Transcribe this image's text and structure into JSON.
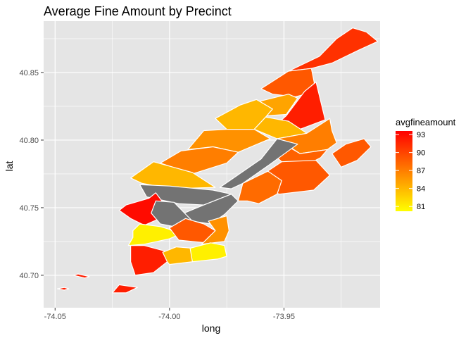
{
  "chart_data": {
    "type": "choropleth map",
    "title": "Average Fine Amount by Precinct",
    "xlabel": "long",
    "ylabel": "lat",
    "xlim": [
      -74.055,
      -73.908
    ],
    "ylim": [
      40.676,
      40.888
    ],
    "x_ticks": [
      -74.05,
      -74.0,
      -73.95
    ],
    "x_tick_labels": [
      "-74.05",
      "-74.00",
      "-73.95"
    ],
    "y_ticks": [
      40.7,
      40.75,
      40.8,
      40.85
    ],
    "y_tick_labels": [
      "40.70",
      "40.75",
      "40.80",
      "40.85"
    ],
    "grid": true,
    "legend": {
      "title": "avgfineamount",
      "placement": "right",
      "range": [
        80.2,
        93.6
      ],
      "breaks": [
        93,
        90,
        87,
        84,
        81
      ],
      "break_labels": [
        "93",
        "90",
        "87",
        "84",
        "81"
      ],
      "low_color": "#ffff00",
      "high_color": "#ff0000",
      "na_color": "#737373"
    },
    "colors": {
      "panel_background": "#e5e5e5",
      "gridline": "#ffffff",
      "precinct_border": "#ffffff"
    },
    "precincts": [
      {
        "value": 91,
        "polygon": [
          [
            -73.9345,
            40.862
          ],
          [
            -73.927,
            40.875
          ],
          [
            -73.92,
            40.883
          ],
          [
            -73.914,
            40.88
          ],
          [
            -73.909,
            40.873
          ],
          [
            -73.918,
            40.866
          ],
          [
            -73.929,
            40.857
          ],
          [
            -73.938,
            40.853
          ],
          [
            -73.948,
            40.851
          ]
        ]
      },
      {
        "value": 89,
        "polygon": [
          [
            -73.948,
            40.851
          ],
          [
            -73.938,
            40.853
          ],
          [
            -73.936,
            40.836
          ],
          [
            -73.945,
            40.832
          ],
          [
            -73.955,
            40.834
          ],
          [
            -73.96,
            40.838
          ]
        ]
      },
      {
        "value": 92,
        "polygon": [
          [
            -73.941,
            40.836
          ],
          [
            -73.936,
            40.843
          ],
          [
            -73.932,
            40.815
          ],
          [
            -73.943,
            40.808
          ],
          [
            -73.953,
            40.812
          ],
          [
            -73.949,
            40.818
          ]
        ]
      },
      {
        "value": 85,
        "polygon": [
          [
            -73.944,
            40.831
          ],
          [
            -73.948,
            40.834
          ],
          [
            -73.96,
            40.829
          ],
          [
            -73.965,
            40.823
          ],
          [
            -73.958,
            40.818
          ],
          [
            -73.949,
            40.819
          ]
        ]
      },
      {
        "value": 84,
        "polygon": [
          [
            -73.969,
            40.826
          ],
          [
            -73.962,
            40.83
          ],
          [
            -73.955,
            40.823
          ],
          [
            -73.958,
            40.817
          ],
          [
            -73.963,
            40.808
          ],
          [
            -73.975,
            40.808
          ],
          [
            -73.98,
            40.816
          ]
        ]
      },
      {
        "value": 84,
        "polygon": [
          [
            -73.958,
            40.817
          ],
          [
            -73.948,
            40.814
          ],
          [
            -73.94,
            40.805
          ],
          [
            -73.953,
            40.801
          ],
          [
            -73.963,
            40.808
          ]
        ]
      },
      {
        "value": 87,
        "polygon": [
          [
            -73.94,
            40.805
          ],
          [
            -73.93,
            40.816
          ],
          [
            -73.929,
            40.807
          ],
          [
            -73.927,
            40.798
          ],
          [
            -73.931,
            40.793
          ],
          [
            -73.943,
            40.79
          ],
          [
            -73.953,
            40.801
          ]
        ]
      },
      {
        "value": 88.5,
        "polygon": [
          [
            -73.953,
            40.8
          ],
          [
            -73.943,
            40.79
          ],
          [
            -73.931,
            40.793
          ],
          [
            -73.934,
            40.787
          ],
          [
            -73.942,
            40.78
          ],
          [
            -73.951,
            40.784
          ],
          [
            -73.955,
            40.79
          ]
        ]
      },
      {
        "value": 89,
        "polygon": [
          [
            -73.923,
            40.797
          ],
          [
            -73.915,
            40.801
          ],
          [
            -73.912,
            40.795
          ],
          [
            -73.918,
            40.785
          ],
          [
            -73.925,
            40.78
          ],
          [
            -73.929,
            40.79
          ]
        ]
      },
      {
        "value": 86,
        "polygon": [
          [
            -73.985,
            40.807
          ],
          [
            -73.975,
            40.808
          ],
          [
            -73.963,
            40.808
          ],
          [
            -73.956,
            40.801
          ],
          [
            -73.97,
            40.791
          ],
          [
            -73.981,
            40.795
          ],
          [
            -73.992,
            40.793
          ]
        ]
      },
      {
        "value": 87,
        "polygon": [
          [
            -73.995,
            40.792
          ],
          [
            -73.981,
            40.795
          ],
          [
            -73.97,
            40.791
          ],
          [
            -73.975,
            40.783
          ],
          [
            -73.99,
            40.775
          ],
          [
            -74.004,
            40.783
          ]
        ]
      },
      {
        "value": 84,
        "polygon": [
          [
            -74.007,
            40.784
          ],
          [
            -73.99,
            40.776
          ],
          [
            -73.98,
            40.765
          ],
          [
            -73.999,
            40.764
          ],
          [
            -74.012,
            40.768
          ],
          [
            -74.017,
            40.772
          ]
        ]
      },
      {
        "value": null,
        "polygon": [
          [
            -73.978,
            40.765
          ],
          [
            -73.96,
            40.786
          ],
          [
            -73.953,
            40.801
          ],
          [
            -73.944,
            40.797
          ],
          [
            -73.957,
            40.781
          ],
          [
            -73.968,
            40.768
          ],
          [
            -73.973,
            40.764
          ]
        ]
      },
      {
        "value": 89,
        "polygon": [
          [
            -73.951,
            40.784
          ],
          [
            -73.936,
            40.785
          ],
          [
            -73.93,
            40.774
          ],
          [
            -73.937,
            40.763
          ],
          [
            -73.952,
            40.76
          ],
          [
            -73.96,
            40.765
          ],
          [
            -73.958,
            40.776
          ]
        ]
      },
      {
        "value": 88,
        "polygon": [
          [
            -73.968,
            40.768
          ],
          [
            -73.957,
            40.777
          ],
          [
            -73.951,
            40.77
          ],
          [
            -73.953,
            40.76
          ],
          [
            -73.961,
            40.753
          ],
          [
            -73.966,
            40.755
          ],
          [
            -73.97,
            40.755
          ]
        ]
      },
      {
        "value": null,
        "polygon": [
          [
            -74.013,
            40.767
          ],
          [
            -74.0,
            40.766
          ],
          [
            -73.981,
            40.763
          ],
          [
            -73.973,
            40.76
          ],
          [
            -73.985,
            40.752
          ],
          [
            -73.996,
            40.753
          ],
          [
            -74.01,
            40.758
          ]
        ]
      },
      {
        "value": null,
        "polygon": [
          [
            -73.985,
            40.752
          ],
          [
            -73.973,
            40.76
          ],
          [
            -73.97,
            40.755
          ],
          [
            -73.976,
            40.745
          ],
          [
            -73.982,
            40.738
          ],
          [
            -73.99,
            40.74
          ],
          [
            -73.995,
            40.745
          ]
        ]
      },
      {
        "value": 93,
        "polygon": [
          [
            -74.006,
            40.761
          ],
          [
            -74.009,
            40.757
          ],
          [
            -74.019,
            40.752
          ],
          [
            -74.022,
            40.748
          ],
          [
            -74.017,
            40.742
          ],
          [
            -74.011,
            40.737
          ],
          [
            -74.003,
            40.743
          ],
          [
            -74.002,
            40.752
          ]
        ]
      },
      {
        "value": null,
        "polygon": [
          [
            -74.006,
            40.755
          ],
          [
            -73.998,
            40.754
          ],
          [
            -73.99,
            40.74
          ],
          [
            -73.998,
            40.736
          ],
          [
            -74.004,
            40.738
          ],
          [
            -74.008,
            40.746
          ]
        ]
      },
      {
        "value": 81,
        "polygon": [
          [
            -74.013,
            40.738
          ],
          [
            -74.016,
            40.733
          ],
          [
            -74.016,
            40.728
          ],
          [
            -74.018,
            40.722
          ],
          [
            -74.011,
            40.723
          ],
          [
            -74.0,
            40.727
          ],
          [
            -73.996,
            40.73
          ],
          [
            -74.0,
            40.734
          ],
          [
            -74.004,
            40.736
          ]
        ]
      },
      {
        "value": 89,
        "polygon": [
          [
            -74.0,
            40.735
          ],
          [
            -73.993,
            40.742
          ],
          [
            -73.985,
            40.738
          ],
          [
            -73.98,
            40.733
          ],
          [
            -73.984,
            40.724
          ],
          [
            -73.996,
            40.726
          ]
        ]
      },
      {
        "value": 86,
        "polygon": [
          [
            -73.983,
            40.74
          ],
          [
            -73.975,
            40.744
          ],
          [
            -73.974,
            40.733
          ],
          [
            -73.976,
            40.725
          ],
          [
            -73.986,
            40.723
          ],
          [
            -73.98,
            40.733
          ]
        ]
      },
      {
        "value": 92,
        "polygon": [
          [
            -74.017,
            40.722
          ],
          [
            -74.017,
            40.71
          ],
          [
            -74.015,
            40.7
          ],
          [
            -74.007,
            40.702
          ],
          [
            -74.001,
            40.71
          ],
          [
            -74.0,
            40.717
          ],
          [
            -74.011,
            40.722
          ]
        ]
      },
      {
        "value": 84,
        "polygon": [
          [
            -74.003,
            40.717
          ],
          [
            -73.997,
            40.721
          ],
          [
            -73.99,
            40.72
          ],
          [
            -73.987,
            40.713
          ],
          [
            -73.99,
            40.71
          ],
          [
            -74.0,
            40.708
          ],
          [
            -74.001,
            40.71
          ]
        ]
      },
      {
        "value": 81,
        "polygon": [
          [
            -73.991,
            40.72
          ],
          [
            -73.982,
            40.724
          ],
          [
            -73.976,
            40.722
          ],
          [
            -73.975,
            40.714
          ],
          [
            -73.979,
            40.712
          ],
          [
            -73.99,
            40.71
          ]
        ]
      },
      {
        "value": 92,
        "polygon": [
          [
            -74.018,
            40.692
          ],
          [
            -74.022,
            40.693
          ],
          [
            -74.025,
            40.687
          ],
          [
            -74.019,
            40.687
          ],
          [
            -74.014,
            40.691
          ]
        ]
      },
      {
        "value": 92,
        "polygon": [
          [
            -74.04,
            40.701
          ],
          [
            -74.042,
            40.7
          ],
          [
            -74.037,
            40.698
          ],
          [
            -74.035,
            40.699
          ]
        ]
      },
      {
        "value": 92,
        "polygon": [
          [
            -74.046,
            40.691
          ],
          [
            -74.049,
            40.69
          ],
          [
            -74.046,
            40.689
          ],
          [
            -74.044,
            40.69
          ]
        ]
      }
    ]
  }
}
